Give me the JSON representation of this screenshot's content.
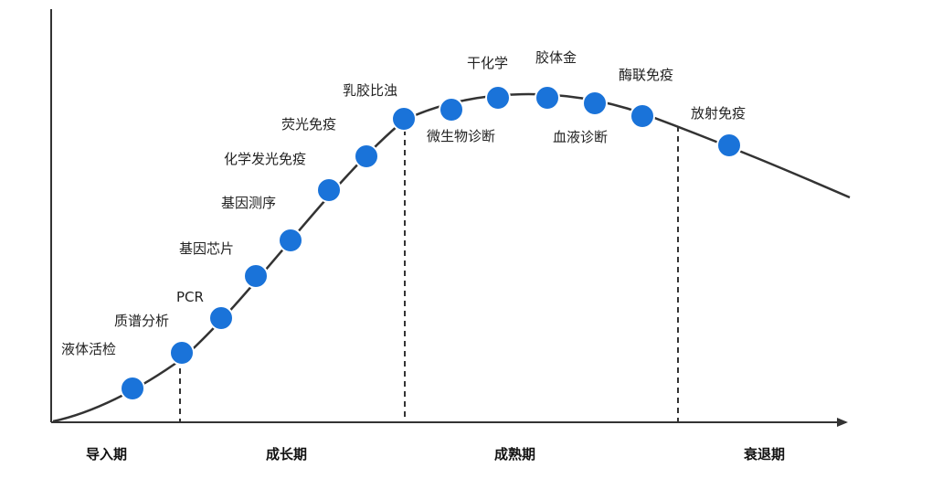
{
  "colors": {
    "axis": "#333333",
    "curve": "#333333",
    "dot": "#1a73d9",
    "dot_stroke": "#ffffff",
    "divider": "#333333",
    "text": "#222222"
  },
  "stages": [
    {
      "id": "intro",
      "label": "导入期"
    },
    {
      "id": "growth",
      "label": "成长期"
    },
    {
      "id": "maturity",
      "label": "成熟期"
    },
    {
      "id": "decline",
      "label": "衰退期"
    }
  ],
  "technologies": [
    {
      "id": "liquid-biopsy",
      "label": "液体活检"
    },
    {
      "id": "mass-spec",
      "label": "质谱分析"
    },
    {
      "id": "pcr",
      "label": "PCR"
    },
    {
      "id": "gene-chip",
      "label": "基因芯片"
    },
    {
      "id": "gene-sequencing",
      "label": "基因测序"
    },
    {
      "id": "chemiluminescence",
      "label": "化学发光免疫"
    },
    {
      "id": "fluorescence-immuno",
      "label": "荧光免疫"
    },
    {
      "id": "latex-turbidimetry",
      "label": "乳胶比浊"
    },
    {
      "id": "microbial-diagnosis",
      "label": "微生物诊断"
    },
    {
      "id": "dry-chemistry",
      "label": "干化学"
    },
    {
      "id": "colloidal-gold",
      "label": "胶体金"
    },
    {
      "id": "blood-diagnosis",
      "label": "血液诊断"
    },
    {
      "id": "enzyme-immuno",
      "label": "酶联免疫"
    },
    {
      "id": "radioimmuno",
      "label": "放射免疫"
    }
  ]
}
